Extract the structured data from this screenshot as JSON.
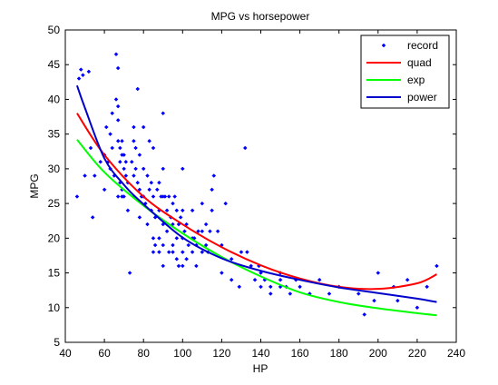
{
  "chart_data": {
    "type": "scatter",
    "title": "MPG vs horsepower",
    "xlabel": "HP",
    "ylabel": "MPG",
    "xlim": [
      40,
      240
    ],
    "ylim": [
      5,
      50
    ],
    "xticks": [
      "40",
      "60",
      "80",
      "100",
      "120",
      "140",
      "160",
      "180",
      "200",
      "220",
      "240"
    ],
    "yticks": [
      "5",
      "10",
      "15",
      "20",
      "25",
      "30",
      "35",
      "40",
      "45",
      "50"
    ],
    "grid": false,
    "legend_position": "top-right",
    "colors": {
      "record": "#0000ff",
      "quad": "#ff0000",
      "exp": "#00ff00",
      "power": "#0000cc"
    },
    "series": [
      {
        "name": "record",
        "kind": "scatter",
        "points": [
          [
            46,
            26
          ],
          [
            47,
            43
          ],
          [
            48,
            44.3
          ],
          [
            49,
            43.5
          ],
          [
            50,
            29
          ],
          [
            52,
            44
          ],
          [
            53,
            33
          ],
          [
            54,
            23
          ],
          [
            55,
            29
          ],
          [
            58,
            31
          ],
          [
            60,
            32
          ],
          [
            60,
            27
          ],
          [
            61,
            36
          ],
          [
            62,
            31
          ],
          [
            63,
            35
          ],
          [
            63,
            30
          ],
          [
            64,
            38
          ],
          [
            64,
            33
          ],
          [
            65,
            29
          ],
          [
            66,
            46.5
          ],
          [
            66,
            40
          ],
          [
            67,
            37
          ],
          [
            67,
            44.5
          ],
          [
            67,
            39
          ],
          [
            67,
            34
          ],
          [
            67,
            26
          ],
          [
            68,
            31
          ],
          [
            68,
            33
          ],
          [
            68,
            28
          ],
          [
            69,
            34
          ],
          [
            69,
            32
          ],
          [
            69,
            27
          ],
          [
            69,
            26
          ],
          [
            70,
            32
          ],
          [
            70,
            30
          ],
          [
            70,
            26
          ],
          [
            71,
            31
          ],
          [
            71,
            29
          ],
          [
            72,
            28
          ],
          [
            72,
            24
          ],
          [
            73,
            15
          ],
          [
            74,
            31
          ],
          [
            75,
            36
          ],
          [
            75,
            34
          ],
          [
            75,
            29
          ],
          [
            75,
            26
          ],
          [
            76,
            33
          ],
          [
            76,
            30
          ],
          [
            77,
            41.5
          ],
          [
            77,
            28
          ],
          [
            78,
            32
          ],
          [
            78,
            27
          ],
          [
            78,
            23
          ],
          [
            79,
            26
          ],
          [
            80,
            36
          ],
          [
            80,
            30
          ],
          [
            80,
            26
          ],
          [
            81,
            25
          ],
          [
            82,
            29
          ],
          [
            82,
            22
          ],
          [
            83,
            34
          ],
          [
            83,
            27
          ],
          [
            84,
            28
          ],
          [
            84,
            24
          ],
          [
            85,
            33
          ],
          [
            85,
            26
          ],
          [
            85,
            20
          ],
          [
            85,
            18
          ],
          [
            86,
            23
          ],
          [
            86,
            19
          ],
          [
            87,
            27
          ],
          [
            88,
            28
          ],
          [
            88,
            24
          ],
          [
            88,
            20
          ],
          [
            88,
            18
          ],
          [
            89,
            26
          ],
          [
            90,
            38
          ],
          [
            90,
            30
          ],
          [
            90,
            26
          ],
          [
            90,
            22
          ],
          [
            90,
            19
          ],
          [
            90,
            16
          ],
          [
            91,
            26
          ],
          [
            92,
            24
          ],
          [
            92,
            21
          ],
          [
            93,
            26
          ],
          [
            93,
            18
          ],
          [
            94,
            23
          ],
          [
            95,
            25
          ],
          [
            95,
            22
          ],
          [
            95,
            19
          ],
          [
            95,
            18
          ],
          [
            96,
            26
          ],
          [
            97,
            24
          ],
          [
            97,
            20
          ],
          [
            97,
            17
          ],
          [
            98,
            22
          ],
          [
            98,
            16
          ],
          [
            99,
            23
          ],
          [
            100,
            30
          ],
          [
            100,
            24
          ],
          [
            100,
            20
          ],
          [
            100,
            18
          ],
          [
            100,
            16
          ],
          [
            101,
            21
          ],
          [
            102,
            22
          ],
          [
            102,
            17
          ],
          [
            103,
            19
          ],
          [
            105,
            20
          ],
          [
            105,
            24
          ],
          [
            105,
            18
          ],
          [
            106,
            20
          ],
          [
            107,
            19
          ],
          [
            107,
            16
          ],
          [
            108,
            21
          ],
          [
            110,
            25
          ],
          [
            110,
            21
          ],
          [
            110,
            18
          ],
          [
            112,
            22
          ],
          [
            112,
            19
          ],
          [
            113,
            18
          ],
          [
            114,
            21
          ],
          [
            115,
            27
          ],
          [
            115,
            24
          ],
          [
            116,
            29
          ],
          [
            118,
            21
          ],
          [
            120,
            19
          ],
          [
            120,
            15
          ],
          [
            122,
            25
          ],
          [
            125,
            17
          ],
          [
            125,
            14
          ],
          [
            129,
            13
          ],
          [
            130,
            18
          ],
          [
            132,
            33
          ],
          [
            133,
            18
          ],
          [
            135,
            16
          ],
          [
            137,
            14
          ],
          [
            139,
            16
          ],
          [
            140,
            15
          ],
          [
            140,
            13
          ],
          [
            142,
            14
          ],
          [
            145,
            13
          ],
          [
            145,
            12
          ],
          [
            150,
            15
          ],
          [
            150,
            14
          ],
          [
            150,
            13
          ],
          [
            153,
            13
          ],
          [
            155,
            12
          ],
          [
            158,
            14
          ],
          [
            160,
            13
          ],
          [
            165,
            12
          ],
          [
            170,
            14
          ],
          [
            175,
            12
          ],
          [
            180,
            13
          ],
          [
            190,
            12
          ],
          [
            193,
            9
          ],
          [
            198,
            11
          ],
          [
            200,
            15
          ],
          [
            208,
            13
          ],
          [
            210,
            11
          ],
          [
            215,
            14
          ],
          [
            220,
            10
          ],
          [
            225,
            13
          ],
          [
            230,
            16
          ]
        ]
      },
      {
        "name": "quad",
        "kind": "line",
        "x": [
          46,
          60,
          80,
          100,
          120,
          140,
          160,
          180,
          200,
          220,
          230
        ],
        "y": [
          38,
          32,
          26,
          22,
          18.7,
          16.1,
          14.2,
          13,
          12.7,
          13.5,
          14.8
        ]
      },
      {
        "name": "exp",
        "kind": "line",
        "x": [
          46,
          60,
          80,
          100,
          120,
          140,
          160,
          180,
          200,
          220,
          230
        ],
        "y": [
          34.2,
          29.5,
          24.7,
          20.7,
          17.3,
          14.5,
          12.2,
          10.8,
          9.9,
          9.2,
          8.9
        ]
      },
      {
        "name": "power",
        "kind": "line",
        "x": [
          46,
          50,
          60,
          70,
          80,
          100,
          120,
          140,
          160,
          180,
          200,
          220,
          230
        ],
        "y": [
          42,
          38.8,
          31.5,
          27.7,
          24.9,
          20.1,
          17.1,
          15.3,
          14,
          12.9,
          12.1,
          11.3,
          10.8
        ]
      }
    ]
  }
}
